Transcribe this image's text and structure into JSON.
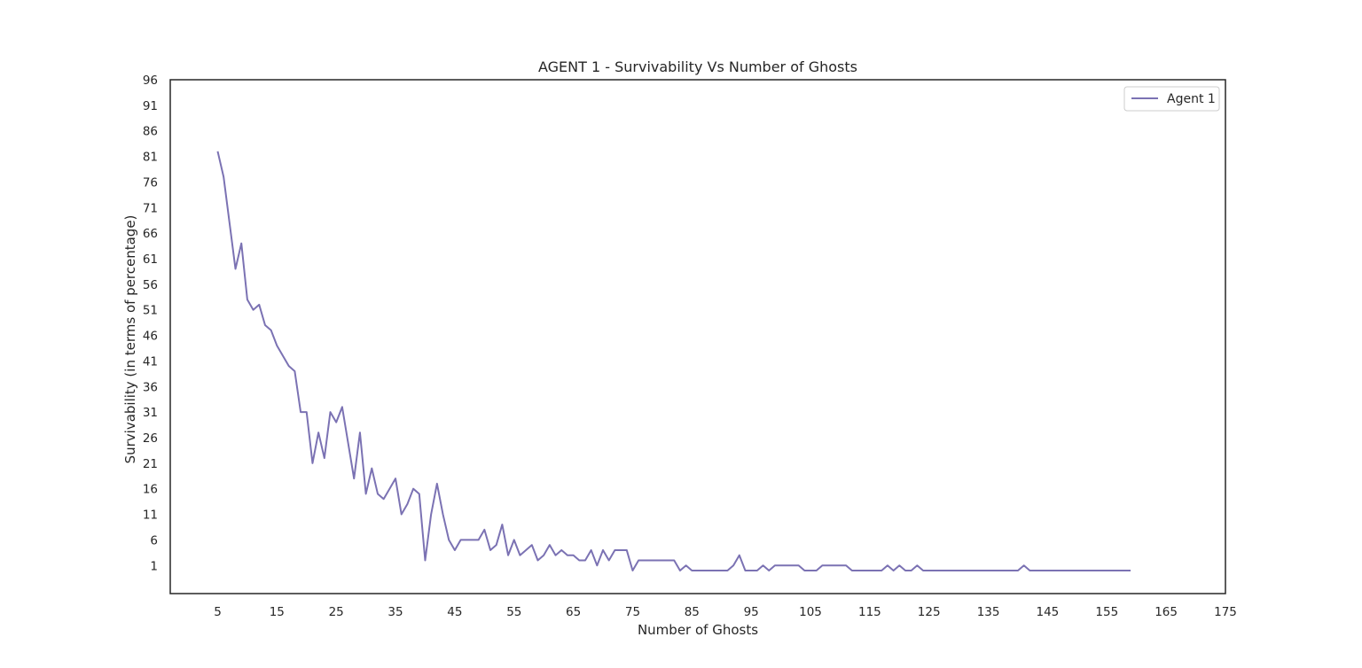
{
  "chart_data": {
    "type": "line",
    "title": "AGENT 1 - Survivability Vs Number of Ghosts",
    "xlabel": "Number of Ghosts",
    "ylabel": "Survivability (in terms of percentage)",
    "xlim": [
      -3,
      175
    ],
    "ylim": [
      -4.5,
      96
    ],
    "xticks": [
      5,
      15,
      25,
      35,
      45,
      55,
      65,
      75,
      85,
      95,
      105,
      115,
      125,
      135,
      145,
      155,
      165,
      175
    ],
    "yticks": [
      1,
      6,
      11,
      16,
      21,
      26,
      31,
      36,
      41,
      46,
      51,
      56,
      61,
      66,
      71,
      76,
      81,
      86,
      91,
      96
    ],
    "grid": false,
    "legend": "top-right",
    "series_color": "#7b72b3",
    "x_start": 5,
    "series": [
      {
        "name": "Agent 1",
        "values": [
          82,
          77,
          68,
          59,
          64,
          53,
          51,
          52,
          48,
          47,
          44,
          42,
          40,
          39,
          31,
          31,
          21,
          27,
          22,
          31,
          29,
          32,
          25,
          18,
          27,
          15,
          20,
          15,
          14,
          16,
          18,
          11,
          13,
          16,
          15,
          2,
          11,
          17,
          11,
          6,
          4,
          6,
          6,
          6,
          6,
          8,
          4,
          5,
          9,
          3,
          6,
          3,
          4,
          5,
          2,
          3,
          5,
          3,
          4,
          3,
          3,
          2,
          2,
          4,
          1,
          4,
          2,
          4,
          4,
          4,
          0,
          2,
          2,
          2,
          2,
          2,
          2,
          2,
          0,
          1,
          0,
          0,
          0,
          0,
          0,
          0,
          0,
          1,
          3,
          0,
          0,
          0,
          1,
          0,
          1,
          1,
          1,
          1,
          1,
          0,
          0,
          0,
          1,
          1,
          1,
          1,
          1,
          0,
          0,
          0,
          0,
          0,
          0,
          1,
          0,
          1,
          0,
          0,
          1,
          0,
          0,
          0,
          0,
          0,
          0,
          0,
          0,
          0,
          0,
          0,
          0,
          0,
          0,
          0,
          0,
          0,
          1,
          0,
          0,
          0,
          0,
          0,
          0,
          0,
          0,
          0,
          0,
          0,
          0,
          0,
          0,
          0,
          0,
          0,
          0
        ]
      }
    ]
  }
}
